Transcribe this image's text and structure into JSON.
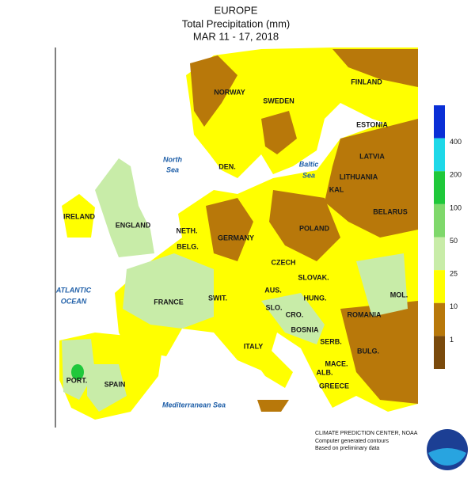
{
  "header": {
    "title": "EUROPE",
    "subtitle": "Total Precipitation (mm)",
    "dates": "MAR 11 - 17, 2018"
  },
  "legend": {
    "colors": [
      "#0a2fd6",
      "#1ed8e8",
      "#1fc83a",
      "#7fd86b",
      "#c8eca8",
      "#ffff00",
      "#b8780a",
      "#7a4a0c"
    ],
    "labels": [
      400,
      200,
      100,
      50,
      25,
      10,
      1
    ]
  },
  "countries": [
    "FINLAND",
    "NORWAY",
    "SWEDEN",
    "ESTONIA",
    "LATVIA",
    "DEN.",
    "LITHUANIA",
    "KAL",
    "IRELAND",
    "ENGLAND",
    "BELARUS",
    "NETH.",
    "POLAND",
    "GERMANY",
    "BELG.",
    "CZECH",
    "SLOVAK.",
    "AUS.",
    "MOL.",
    "FRANCE",
    "SWIT.",
    "SLO.",
    "HUNG.",
    "CRO.",
    "ROMANIA",
    "BOSNIA",
    "SERB.",
    "BULG.",
    "ITALY",
    "MACE.",
    "PORT.",
    "SPAIN",
    "ALB.",
    "GREECE"
  ],
  "seas": [
    "North",
    "Sea",
    "Baltic",
    "Sea",
    "ATLANTIC",
    "OCEAN",
    "Mediterranean Sea"
  ],
  "credits": [
    "CLIMATE PREDICTION CENTER, NOAA",
    "Computer generated contours",
    "Based on preliminary data"
  ]
}
